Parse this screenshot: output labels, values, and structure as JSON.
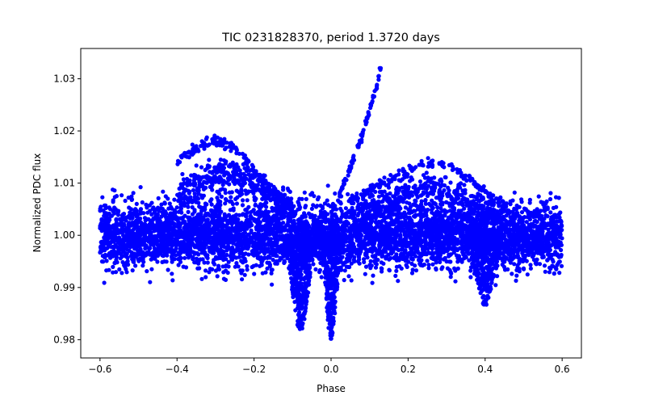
{
  "chart_data": {
    "type": "scatter",
    "title": "TIC 0231828370, period 1.3720 days",
    "xlabel": "Phase",
    "ylabel": "Normalized PDC flux",
    "xlim": [
      -0.65,
      0.65
    ],
    "ylim": [
      0.9765,
      1.0358
    ],
    "xticks": [
      -0.6,
      -0.4,
      -0.2,
      0.0,
      0.2,
      0.4,
      0.6
    ],
    "xtick_labels": [
      "−0.6",
      "−0.4",
      "−0.2",
      "0.0",
      "0.2",
      "0.4",
      "0.6"
    ],
    "yticks": [
      0.98,
      0.99,
      1.0,
      1.01,
      1.02,
      1.03
    ],
    "ytick_labels": [
      "0.98",
      "0.99",
      "1.00",
      "1.01",
      "1.02",
      "1.03"
    ],
    "grid": false,
    "marker_color": "#0000ff",
    "series": [
      {
        "name": "flux",
        "description_of_shape": "dense band of points spanning phase -0.6 to 0.6 centered near 1.000; humps near phase -0.3 and +0.25; dips near phase -0.08 and +0.4; a rising streak from phase 0.02 to 0.13 reaching ~1.033",
        "band": {
          "x_range": [
            -0.6,
            0.6
          ],
          "center": 1.0,
          "half_width": 0.0035
        },
        "upper_arc_left": [
          [
            -0.4,
            1.0145
          ],
          [
            -0.35,
            1.017
          ],
          [
            -0.3,
            1.0188
          ],
          [
            -0.25,
            1.017
          ],
          [
            -0.2,
            1.013
          ],
          [
            -0.15,
            1.009
          ],
          [
            -0.1,
            1.006
          ]
        ],
        "mid_arc_left": [
          [
            -0.4,
            1.009
          ],
          [
            -0.3,
            1.0135
          ],
          [
            -0.2,
            1.0115
          ],
          [
            -0.1,
            1.006
          ]
        ],
        "upper_arc_right": [
          [
            0.05,
            1.007
          ],
          [
            0.15,
            1.011
          ],
          [
            0.25,
            1.0145
          ],
          [
            0.3,
            1.0142
          ],
          [
            0.35,
            1.012
          ],
          [
            0.4,
            1.009
          ],
          [
            0.45,
            1.006
          ]
        ],
        "mid_arc_right": [
          [
            0.05,
            1.004
          ],
          [
            0.15,
            1.008
          ],
          [
            0.25,
            1.0105
          ],
          [
            0.35,
            1.008
          ],
          [
            0.45,
            1.005
          ]
        ],
        "dip_left": {
          "center": -0.08,
          "depth": 0.9815
        },
        "dip_center": {
          "center": 0.0,
          "depth": 0.98
        },
        "dip_right": {
          "center": 0.4,
          "depth": 0.9865
        },
        "streak": [
          [
            0.02,
            1.0075
          ],
          [
            0.05,
            1.013
          ],
          [
            0.08,
            1.019
          ],
          [
            0.1,
            1.024
          ],
          [
            0.12,
            1.029
          ],
          [
            0.13,
            1.0333
          ]
        ]
      }
    ]
  }
}
